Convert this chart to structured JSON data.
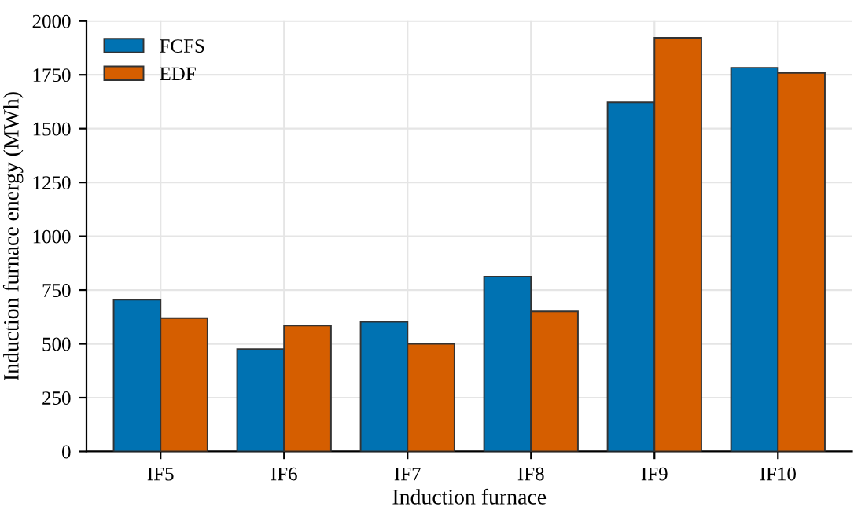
{
  "chart_data": {
    "type": "bar",
    "xlabel": "Induction furnace",
    "ylabel": "Induction furnace energy (MWh)",
    "categories": [
      "IF5",
      "IF6",
      "IF7",
      "IF8",
      "IF9",
      "IF10"
    ],
    "series": [
      {
        "name": "FCFS",
        "color": "#0072b2",
        "values": [
          705,
          476,
          602,
          812,
          1622,
          1783
        ]
      },
      {
        "name": "EDF",
        "color": "#d55e00",
        "values": [
          620,
          585,
          500,
          651,
          1922,
          1759
        ]
      }
    ],
    "ylim": [
      0,
      2000
    ],
    "yticks": [
      0,
      250,
      500,
      750,
      1000,
      1250,
      1500,
      1750,
      2000
    ],
    "grid": true,
    "legend": "top left"
  }
}
